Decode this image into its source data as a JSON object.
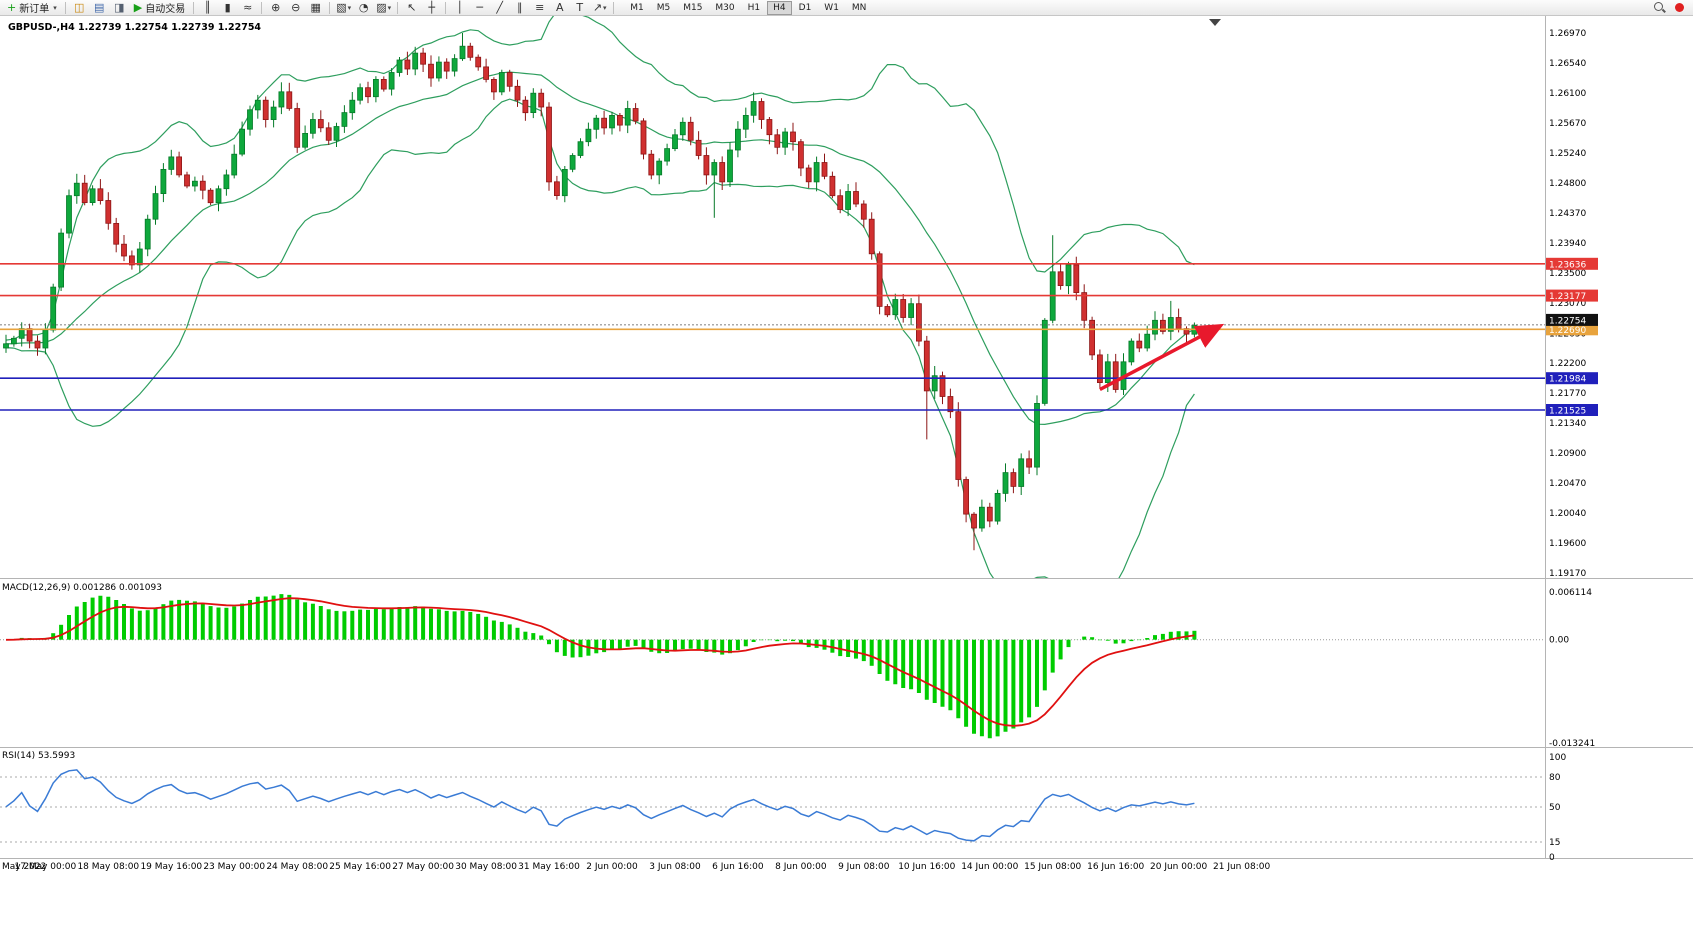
{
  "toolbar": {
    "new_order_label": "新订单",
    "autotrading_label": "自动交易",
    "timeframes": [
      "M1",
      "M5",
      "M15",
      "M30",
      "H1",
      "H4",
      "D1",
      "W1",
      "MN"
    ],
    "active_timeframe": "H4",
    "glyphs": {
      "new_order": "+",
      "caret": "▾",
      "market_watch": "◫",
      "data_window": "▤",
      "navigator": "◨",
      "autotrading": "▶",
      "bar_chart": "║",
      "candle_chart": "▮",
      "line_chart": "≈",
      "zoom_in": "⊕",
      "zoom_out": "⊖",
      "tile": "▦",
      "new_chart": "▧",
      "clock": "◔",
      "template": "▨",
      "cursor": "↖",
      "crosshair": "┼",
      "vline": "│",
      "hline": "─",
      "trendline": "╱",
      "channel": "∥",
      "fibo": "≡",
      "text": "A",
      "label": "T",
      "arrows": "↗"
    }
  },
  "chart": {
    "symbol_title": "GBPUSD-,H4 1.22739 1.22754 1.22739 1.22754",
    "macd_label": "MACD(12,26,9) 0.001286 0.001093",
    "rsi_label": "RSI(14) 53.5993"
  },
  "chart_data": {
    "type": "candlestick",
    "symbol": "GBPUSD-",
    "timeframe": "H4",
    "ohlc_title": {
      "open": "1.22739",
      "high": "1.22754",
      "low": "1.22739",
      "close": "1.22754"
    },
    "closes": [
      1.2248,
      1.2256,
      1.227,
      1.2252,
      1.2242,
      1.2268,
      1.233,
      1.2408,
      1.2462,
      1.248,
      1.2452,
      1.2472,
      1.2455,
      1.2422,
      1.2392,
      1.2375,
      1.2362,
      1.2385,
      1.2428,
      1.2465,
      1.25,
      1.2518,
      1.2492,
      1.2476,
      1.2483,
      1.247,
      1.2452,
      1.2472,
      1.2492,
      1.2522,
      1.2558,
      1.2586,
      1.26,
      1.2572,
      1.259,
      1.2612,
      1.2588,
      1.2532,
      1.2552,
      1.2572,
      1.256,
      1.2542,
      1.2562,
      1.2582,
      1.26,
      1.2618,
      1.2605,
      1.263,
      1.2616,
      1.264,
      1.2658,
      1.2645,
      1.2668,
      1.2652,
      1.2632,
      1.2655,
      1.2642,
      1.266,
      1.2678,
      1.2662,
      1.2648,
      1.263,
      1.2612,
      1.264,
      1.262,
      1.26,
      1.2582,
      1.261,
      1.259,
      1.2482,
      1.2462,
      1.25,
      1.252,
      1.254,
      1.2558,
      1.2574,
      1.256,
      1.2578,
      1.2564,
      1.2588,
      1.257,
      1.2522,
      1.2492,
      1.2512,
      1.253,
      1.255,
      1.2568,
      1.2542,
      1.252,
      1.2492,
      1.251,
      1.2482,
      1.2528,
      1.2558,
      1.2578,
      1.2598,
      1.2572,
      1.255,
      1.2532,
      1.2554,
      1.254,
      1.2502,
      1.2482,
      1.251,
      1.249,
      1.2462,
      1.2442,
      1.2468,
      1.245,
      1.2428,
      1.2378,
      1.2302,
      1.229,
      1.2312,
      1.2286,
      1.2306,
      1.2252,
      1.218,
      1.2202,
      1.2172,
      1.215,
      1.2052,
      1.2002,
      1.1982,
      1.2012,
      1.1992,
      1.2032,
      1.2062,
      1.2042,
      1.2082,
      1.207,
      1.2162,
      1.2282,
      1.2352,
      1.2332,
      1.2362,
      1.2322,
      1.2282,
      1.2232,
      1.2192,
      1.2222,
      1.2182,
      1.2222,
      1.2252,
      1.2242,
      1.2262,
      1.2282,
      1.2266,
      1.2286,
      1.227,
      1.2262,
      1.2275
    ],
    "wick_overrides": {
      "58": [
        1.2697,
        null
      ],
      "90": [
        null,
        1.243
      ],
      "117": [
        null,
        1.211
      ],
      "123": [
        null,
        1.195
      ],
      "133": [
        1.2405,
        null
      ],
      "148": [
        1.231,
        null
      ]
    },
    "candle_colors": {
      "up": "#0ea83c",
      "up_border": "#067a28",
      "down": "#d03030",
      "down_border": "#8c1515"
    },
    "bollinger": {
      "period": 20,
      "deviation": 2,
      "color": "#2e9e5e"
    },
    "price_axis": {
      "top_price": 1.2697,
      "bottom_price": 1.1917,
      "ticks": [
        "1.26970",
        "1.26540",
        "1.26100",
        "1.25670",
        "1.25240",
        "1.24800",
        "1.24370",
        "1.23940",
        "1.23500",
        "1.23070",
        "1.22630",
        "1.22200",
        "1.21770",
        "1.21340",
        "1.20900",
        "1.20470",
        "1.20040",
        "1.19600",
        "1.19170"
      ]
    },
    "hlines": [
      {
        "price": 1.23636,
        "label": "1.23636",
        "color": "#e53935"
      },
      {
        "price": 1.23177,
        "label": "1.23177",
        "color": "#e53935"
      },
      {
        "price": 1.2269,
        "label": "1.22690",
        "color": "#e8a33d"
      },
      {
        "price": 1.21984,
        "label": "1.21984",
        "color": "#2020bb"
      },
      {
        "price": 1.21525,
        "label": "1.21525",
        "color": "#2020bb"
      }
    ],
    "current_price": {
      "value": 1.22754,
      "label": "1.22754",
      "label_bg": "#111111"
    },
    "trend_arrow": {
      "from_index": 139,
      "from_price": 1.2182,
      "to_index": 154,
      "to_price": 1.2272,
      "color": "#e8192c"
    },
    "macd": {
      "fast": 12,
      "slow": 26,
      "signal_period": 9,
      "value": "0.001286",
      "signal_value": "0.001093",
      "max": 0.006114,
      "min": -0.013241,
      "ticks": [
        "0.006114",
        "0.00",
        "-0.013241"
      ],
      "histogram_color": "#00cc00",
      "signal_color": "#e01010"
    },
    "rsi": {
      "period": 14,
      "value": "53.5993",
      "ticks": [
        "100",
        "80",
        "50",
        "15",
        "0"
      ],
      "levels": [
        80,
        50,
        15
      ],
      "color": "#3a7bd5"
    },
    "time_axis": {
      "labels": [
        {
          "i": 0,
          "text": "May 2022"
        },
        {
          "i": 5,
          "text": "17 May 00:00"
        },
        {
          "i": 13,
          "text": "18 May 08:00"
        },
        {
          "i": 21,
          "text": "19 May 16:00"
        },
        {
          "i": 29,
          "text": "23 May 00:00"
        },
        {
          "i": 37,
          "text": "24 May 08:00"
        },
        {
          "i": 45,
          "text": "25 May 16:00"
        },
        {
          "i": 53,
          "text": "27 May 00:00"
        },
        {
          "i": 61,
          "text": "30 May 08:00"
        },
        {
          "i": 69,
          "text": "31 May 16:00"
        },
        {
          "i": 77,
          "text": "2 Jun 00:00"
        },
        {
          "i": 85,
          "text": "3 Jun 08:00"
        },
        {
          "i": 93,
          "text": "6 Jun 16:00"
        },
        {
          "i": 101,
          "text": "8 Jun 00:00"
        },
        {
          "i": 109,
          "text": "9 Jun 08:00"
        },
        {
          "i": 117,
          "text": "10 Jun 16:00"
        },
        {
          "i": 125,
          "text": "14 Jun 00:00"
        },
        {
          "i": 133,
          "text": "15 Jun 08:00"
        },
        {
          "i": 141,
          "text": "16 Jun 16:00"
        },
        {
          "i": 149,
          "text": "20 Jun 00:00"
        },
        {
          "i": 157,
          "text": "21 Jun 08:00"
        }
      ]
    }
  }
}
